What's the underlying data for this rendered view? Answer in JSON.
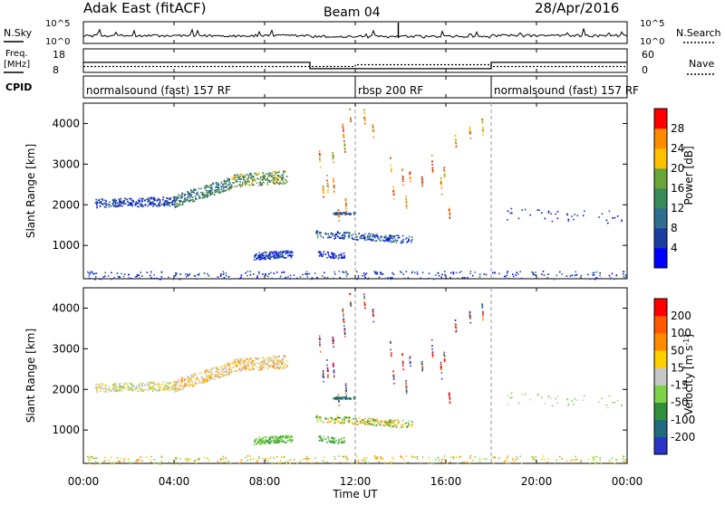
{
  "header": {
    "station": "Adak East (fitACF)",
    "beam": "Beam 04",
    "date": "28/Apr/2016"
  },
  "top_panel_labels": {
    "nsky": "N.Sky",
    "nsearch": "N.Search",
    "freq": "Freq.",
    "freq_unit": "[MHz]",
    "nave": "Nave",
    "cpid": "CPID"
  },
  "cpid_segments": [
    {
      "start": 0,
      "end": 12,
      "label": "normalsound (fast) 157 RF"
    },
    {
      "start": 12,
      "end": 18,
      "label": "rbsp 200 RF"
    },
    {
      "start": 18,
      "end": 24,
      "label": "normalsound (fast) 157 RF"
    }
  ],
  "panel_ticks": {
    "noise_left": [
      "10^5",
      "10^0"
    ],
    "noise_right": [
      "10^5",
      "10^0"
    ],
    "freq_left": [
      "18",
      "8"
    ],
    "nave_right": [
      "60",
      "0"
    ]
  },
  "colorbars": {
    "power": {
      "label": "Power [dB]",
      "ticks": [
        "28",
        "24",
        "20",
        "16",
        "12",
        "8",
        "4"
      ],
      "colors": [
        "#0000ff",
        "#1a3f9f",
        "#2f6e8e",
        "#3a8a5a",
        "#6aa53a",
        "#ffc000",
        "#ff8c00",
        "#ff0000"
      ]
    },
    "velocity": {
      "label": "Velocity [m s",
      "label_sup": "-1",
      "label_end": "]",
      "ticks": [
        "200",
        "100",
        "50",
        "15",
        "-15",
        "-50",
        "-100",
        "-200"
      ],
      "colors": [
        "#2a35c8",
        "#1f6a7c",
        "#2f8f3a",
        "#7fd34a",
        "#c8c8c8",
        "#ffd000",
        "#ff8c00",
        "#ff5a00",
        "#ff0000"
      ]
    }
  },
  "chart_data": [
    {
      "type": "heatmap",
      "title": "",
      "xlabel": "",
      "ylabel": "Slant Range [km]",
      "xlim": [
        0,
        24
      ],
      "ylim": [
        180,
        4500
      ],
      "yticks": [
        "4000",
        "3000",
        "2000",
        "1000"
      ],
      "colorbar": "Power [dB]"
    },
    {
      "type": "heatmap",
      "title": "",
      "xlabel": "Time UT",
      "ylabel": "Slant Range [km]",
      "xlim": [
        0,
        24
      ],
      "ylim": [
        180,
        4500
      ],
      "xticks": [
        "00:00",
        "04:00",
        "08:00",
        "12:00",
        "16:00",
        "20:00",
        "00:00"
      ],
      "yticks": [
        "4000",
        "3000",
        "2000",
        "1000"
      ],
      "colorbar": "Velocity [m s-1]"
    }
  ]
}
